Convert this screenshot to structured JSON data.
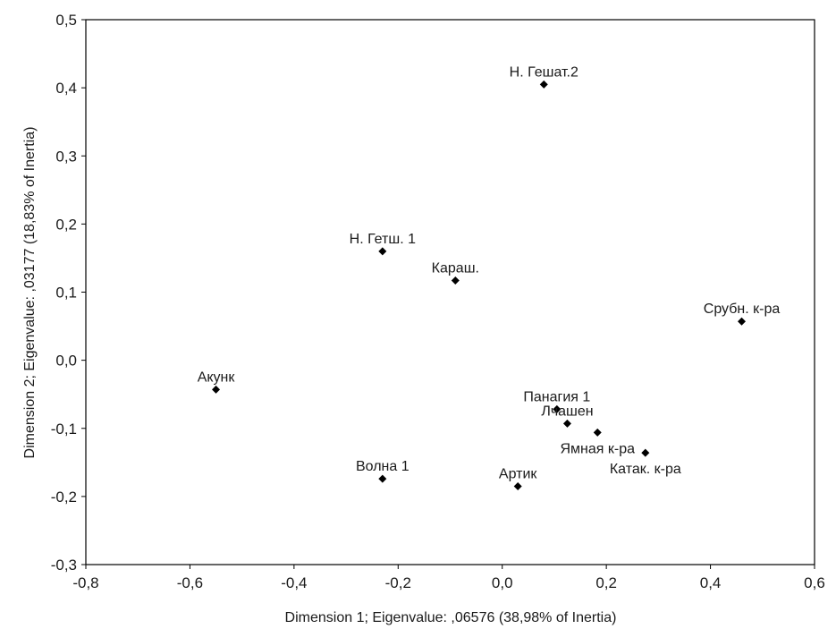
{
  "chart_data": {
    "type": "scatter",
    "xlabel": "Dimension 1; Eigenvalue: ,06576 (38,98% of Inertia)",
    "ylabel": "Dimension 2; Eigenvalue: ,03177 (18,83% of Inertia)",
    "xlim": [
      -0.8,
      0.6
    ],
    "ylim": [
      -0.3,
      0.5
    ],
    "xticks": [
      -0.8,
      -0.6,
      -0.4,
      -0.2,
      0.0,
      0.2,
      0.4,
      0.6
    ],
    "yticks": [
      -0.3,
      -0.2,
      -0.1,
      0.0,
      0.1,
      0.2,
      0.3,
      0.4,
      0.5
    ],
    "xtick_labels": [
      "-0,8",
      "-0,6",
      "-0,4",
      "-0,2",
      "0,0",
      "0,2",
      "0,4",
      "0,6"
    ],
    "ytick_labels": [
      "-0,3",
      "-0,2",
      "-0,1",
      "0,0",
      "0,1",
      "0,2",
      "0,3",
      "0,4",
      "0,5"
    ],
    "grid": false,
    "marker_color": "#000000",
    "points": [
      {
        "label": "Н. Гешат.2",
        "x": 0.08,
        "y": 0.405,
        "label_pos": "above"
      },
      {
        "label": "Н. Гетш. 1",
        "x": -0.23,
        "y": 0.16,
        "label_pos": "above"
      },
      {
        "label": "Караш.",
        "x": -0.09,
        "y": 0.117,
        "label_pos": "above"
      },
      {
        "label": "Срубн. к-ра",
        "x": 0.46,
        "y": 0.057,
        "label_pos": "above"
      },
      {
        "label": "Акунк",
        "x": -0.55,
        "y": -0.043,
        "label_pos": "above"
      },
      {
        "label": "Панагия 1",
        "x": 0.105,
        "y": -0.072,
        "label_pos": "above"
      },
      {
        "label": "Лчашен",
        "x": 0.125,
        "y": -0.093,
        "label_pos": "above"
      },
      {
        "label": "Ямная к-ра",
        "x": 0.183,
        "y": -0.106,
        "label_pos": "below"
      },
      {
        "label": "Катак. к-ра",
        "x": 0.275,
        "y": -0.136,
        "label_pos": "below"
      },
      {
        "label": "Волна 1",
        "x": -0.23,
        "y": -0.174,
        "label_pos": "above"
      },
      {
        "label": "Артик",
        "x": 0.03,
        "y": -0.185,
        "label_pos": "above"
      }
    ]
  }
}
